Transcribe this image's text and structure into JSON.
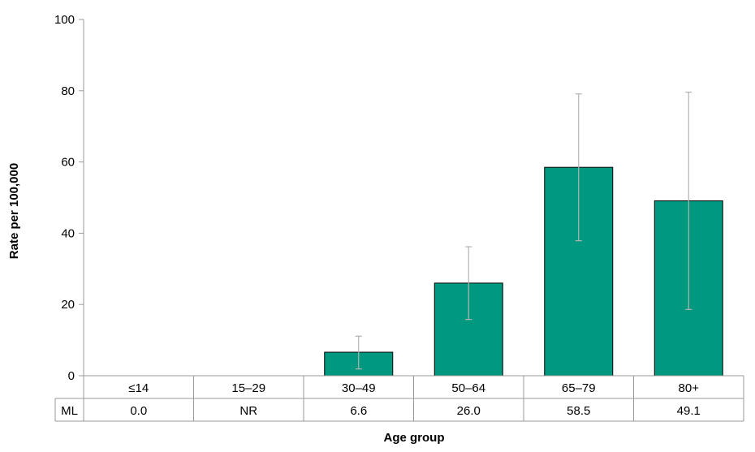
{
  "chart_data": {
    "type": "bar",
    "categories": [
      "≤14",
      "15–29",
      "30–49",
      "50–64",
      "65–79",
      "80+"
    ],
    "values": [
      0.0,
      null,
      6.6,
      26.0,
      58.5,
      49.1
    ],
    "error_bars": [
      {
        "low": null,
        "high": null
      },
      {
        "low": null,
        "high": null
      },
      {
        "low": 1.9,
        "high": 11.1
      },
      {
        "low": 15.8,
        "high": 36.2
      },
      {
        "low": 37.9,
        "high": 79.1
      },
      {
        "low": 18.6,
        "high": 79.6
      }
    ],
    "xlabel": "Age group",
    "ylabel": "Rate per 100,000",
    "ylim": [
      0,
      100
    ],
    "yticks": [
      0,
      20,
      40,
      60,
      80,
      100
    ],
    "grid": false,
    "table": {
      "row_label": "ML",
      "cells": [
        "0.0",
        "NR",
        "6.6",
        "26.0",
        "58.5",
        "49.1"
      ]
    },
    "colors": {
      "bar": "#00997f",
      "bar_outline": "#000000",
      "error_bar": "#b3b3b3",
      "axis": "#999999"
    }
  }
}
